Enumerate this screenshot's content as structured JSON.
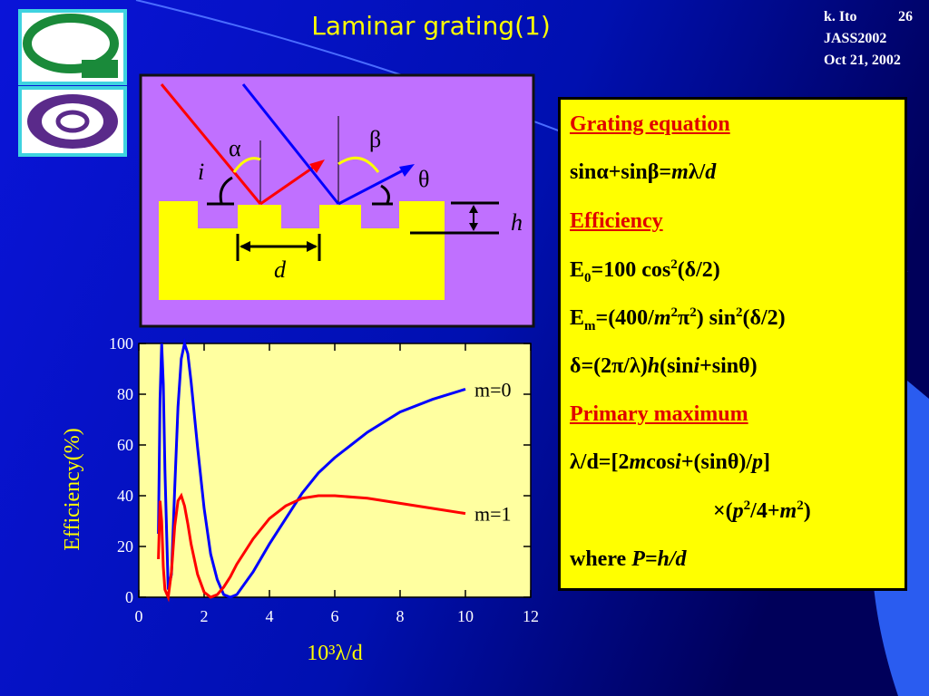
{
  "title": "Laminar grating(1)",
  "header": {
    "author": "k. Ito",
    "page": "26",
    "event": "JASS2002",
    "date": "Oct 21, 2002"
  },
  "diagram": {
    "labels": {
      "alpha": "α",
      "beta": "β",
      "theta": "θ",
      "i": "i",
      "h": "h",
      "d": "d"
    }
  },
  "equations": [
    {
      "heading": true,
      "segments": [
        {
          "text": "Grating equation"
        }
      ]
    },
    {
      "segments": [
        {
          "text": "sinα+sinβ="
        },
        {
          "text": "m",
          "style": "em"
        },
        {
          "text": "λ/"
        },
        {
          "text": "d",
          "style": "em"
        }
      ]
    },
    {
      "heading": true,
      "segments": [
        {
          "text": "Efficiency"
        }
      ]
    },
    {
      "segments": [
        {
          "text": "E"
        },
        {
          "text": "0",
          "style": "sub"
        },
        {
          "text": "=100 cos"
        },
        {
          "text": "2",
          "style": "sup"
        },
        {
          "text": "(δ/2)"
        }
      ]
    },
    {
      "segments": [
        {
          "text": "E"
        },
        {
          "text": "m",
          "style": "sub"
        },
        {
          "text": "=(400/"
        },
        {
          "text": "m",
          "style": "em"
        },
        {
          "text": "2",
          "style": "sup"
        },
        {
          "text": "π"
        },
        {
          "text": "2",
          "style": "sup"
        },
        {
          "text": ") sin"
        },
        {
          "text": "2",
          "style": "sup"
        },
        {
          "text": "(δ/2)"
        }
      ]
    },
    {
      "segments": [
        {
          "text": "δ=(2π/λ)"
        },
        {
          "text": "h",
          "style": "em"
        },
        {
          "text": "(sin"
        },
        {
          "text": "i",
          "style": "em"
        },
        {
          "text": "+sinθ)"
        }
      ]
    },
    {
      "heading": true,
      "segments": [
        {
          "text": "Primary maximum"
        }
      ]
    },
    {
      "segments": [
        {
          "text": "λ/d=[2"
        },
        {
          "text": "m",
          "style": "em"
        },
        {
          "text": "cos"
        },
        {
          "text": "i",
          "style": "em"
        },
        {
          "text": "+(sinθ)/"
        },
        {
          "text": "p",
          "style": "em"
        },
        {
          "text": "]"
        }
      ]
    },
    {
      "indent": true,
      "segments": [
        {
          "text": "×("
        },
        {
          "text": "p",
          "style": "em"
        },
        {
          "text": "2",
          "style": "sup"
        },
        {
          "text": "/4+"
        },
        {
          "text": "m",
          "style": "em"
        },
        {
          "text": "2",
          "style": "sup"
        },
        {
          "text": ")"
        }
      ]
    },
    {
      "segments": [
        {
          "text": "where "
        },
        {
          "text": "P=h/d",
          "style": "em"
        }
      ]
    }
  ],
  "chart_data": {
    "type": "line",
    "x_label": "10³λ/d",
    "y_label": "Efficiency(%)",
    "x": [
      0.6,
      0.65,
      0.7,
      0.75,
      0.8,
      0.9,
      1.0,
      1.1,
      1.2,
      1.3,
      1.4,
      1.5,
      1.6,
      1.8,
      2.0,
      2.2,
      2.4,
      2.6,
      2.8,
      3.0,
      3.5,
      4,
      4.5,
      5,
      5.5,
      6,
      7,
      8,
      9,
      10
    ],
    "series": [
      {
        "name": "m=0",
        "color": "#0000ff",
        "values": [
          25,
          78,
          100,
          84,
          50,
          3,
          9,
          43,
          75,
          94,
          100,
          96,
          85,
          59,
          35,
          17,
          7,
          1,
          0,
          1,
          10,
          21,
          31,
          41,
          49,
          55,
          65,
          73,
          78,
          82
        ]
      },
      {
        "name": "m=1",
        "color": "#ff0000",
        "values": [
          15,
          38,
          30,
          12,
          3,
          0,
          10,
          28,
          38,
          40,
          36,
          29,
          21,
          9,
          2,
          0,
          1,
          4,
          8,
          13,
          23,
          31,
          36,
          39,
          40,
          40,
          39,
          37,
          35,
          33
        ]
      }
    ],
    "xlim": [
      0,
      12
    ],
    "ylim": [
      0,
      100
    ],
    "xticks": [
      0,
      2,
      4,
      6,
      8,
      10,
      12
    ],
    "yticks": [
      0,
      20,
      40,
      60,
      80,
      100
    ],
    "legend": "line-end"
  }
}
